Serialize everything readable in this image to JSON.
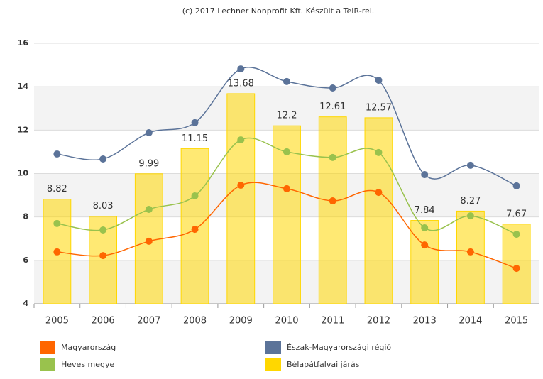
{
  "chart_data": {
    "type": "bar-line",
    "title": "(c) 2017 Lechner Nonprofit Kft. Készült a TeIR-rel.",
    "categories": [
      "2005",
      "2006",
      "2007",
      "2008",
      "2009",
      "2010",
      "2011",
      "2012",
      "2013",
      "2014",
      "2015"
    ],
    "ylim": [
      4,
      16
    ],
    "yticks": [
      4,
      6,
      8,
      10,
      12,
      14,
      16
    ],
    "grid": true,
    "series": [
      {
        "name": "Magyarország",
        "type": "line",
        "color": "#ff6600",
        "values": [
          6.39,
          6.22,
          6.88,
          7.43,
          9.46,
          9.3,
          8.74,
          9.13,
          6.71,
          6.39,
          5.63
        ]
      },
      {
        "name": "Heves megye",
        "type": "line",
        "color": "#99c24d",
        "values": [
          7.7,
          7.4,
          8.35,
          8.97,
          11.55,
          11.0,
          10.74,
          10.97,
          7.5,
          8.05,
          7.2
        ]
      },
      {
        "name": "Észak-Magyarországi régió",
        "type": "line",
        "color": "#5b7399",
        "values": [
          10.9,
          10.67,
          11.88,
          12.34,
          14.82,
          14.24,
          13.94,
          14.3,
          9.95,
          10.38,
          9.43
        ]
      },
      {
        "name": "Bélapátfalvai járás",
        "type": "bar",
        "color": "#ffd700",
        "values": [
          8.82,
          8.03,
          9.99,
          11.15,
          13.68,
          12.2,
          12.61,
          12.57,
          7.84,
          8.27,
          7.67
        ]
      }
    ]
  }
}
